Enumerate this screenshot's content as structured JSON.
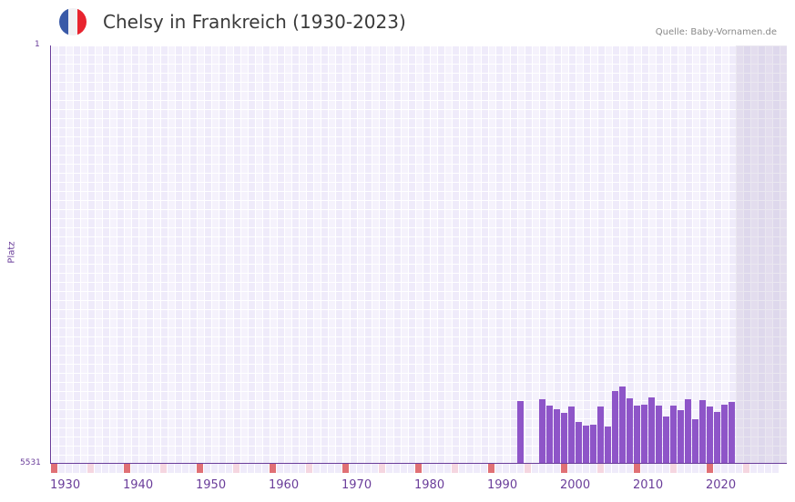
{
  "header": {
    "title": "Chelsy in Frankreich (1930-2023)",
    "source": "Quelle: Baby-Vornamen.de",
    "flag_icon": "france-flag-icon",
    "flag_colors": [
      "#3a5aa8",
      "#f1f1f4",
      "#e8242f"
    ]
  },
  "colors": {
    "bar": "#8e55c8",
    "axis": "#6a3d9a",
    "decade_marker": "#e07075",
    "half_decade_marker": "#f5d6e0",
    "grid_bg": "#efebfa"
  },
  "chart_data": {
    "type": "bar",
    "title": "Chelsy in Frankreich (1930-2023)",
    "xlabel": "",
    "ylabel": "Platz",
    "y_inverted": true,
    "ylim": [
      5531,
      1
    ],
    "y_ticks": [
      "1",
      "5531"
    ],
    "x_range": [
      1930,
      2029
    ],
    "x_ticks": [
      "1930",
      "1940",
      "1950",
      "1960",
      "1970",
      "1980",
      "1990",
      "2000",
      "2010",
      "2020"
    ],
    "grid": true,
    "legend": null,
    "source": "Quelle: Baby-Vornamen.de",
    "categories": [
      1994,
      1997,
      1998,
      1999,
      2000,
      2001,
      2002,
      2003,
      2004,
      2005,
      2006,
      2007,
      2008,
      2009,
      2010,
      2011,
      2012,
      2013,
      2014,
      2015,
      2016,
      2017,
      2018,
      2019,
      2020,
      2021,
      2022,
      2023
    ],
    "values": [
      4701,
      4677,
      4761,
      4809,
      4857,
      4773,
      4977,
      5025,
      5013,
      4773,
      5037,
      4569,
      4509,
      4665,
      4761,
      4749,
      4653,
      4761,
      4905,
      4761,
      4821,
      4677,
      4941,
      4689,
      4773,
      4845,
      4749,
      4713
    ]
  }
}
